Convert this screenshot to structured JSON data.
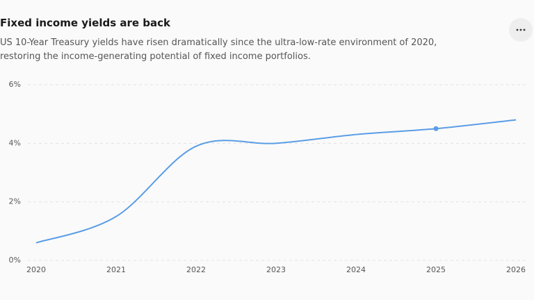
{
  "chart_data": {
    "type": "line",
    "title": "Fixed income yields are back",
    "subtitle": "US 10-Year Treasury yields have risen dramatically since the ultra-low-rate environment of 2020, restoring the income-generating potential of fixed income portfolios.",
    "x": [
      2020,
      2021,
      2022,
      2023,
      2024,
      2025,
      2026
    ],
    "series": [
      {
        "color": "#5a9de6",
        "values": [
          0.6,
          1.5,
          3.9,
          4.0,
          4.3,
          4.5,
          4.8
        ]
      }
    ],
    "highlight": 2025,
    "xlim": [
      2020,
      2026
    ],
    "xticks": [
      2020,
      2021,
      2022,
      2023,
      2024,
      2025,
      2026
    ],
    "ylim": [
      0,
      6
    ],
    "yticks": [
      {
        "value": 0,
        "label": "0%"
      },
      {
        "value": 2,
        "label": "2%"
      },
      {
        "value": 4,
        "label": "4%"
      },
      {
        "value": 6,
        "label": "6%"
      }
    ],
    "grid": true
  }
}
